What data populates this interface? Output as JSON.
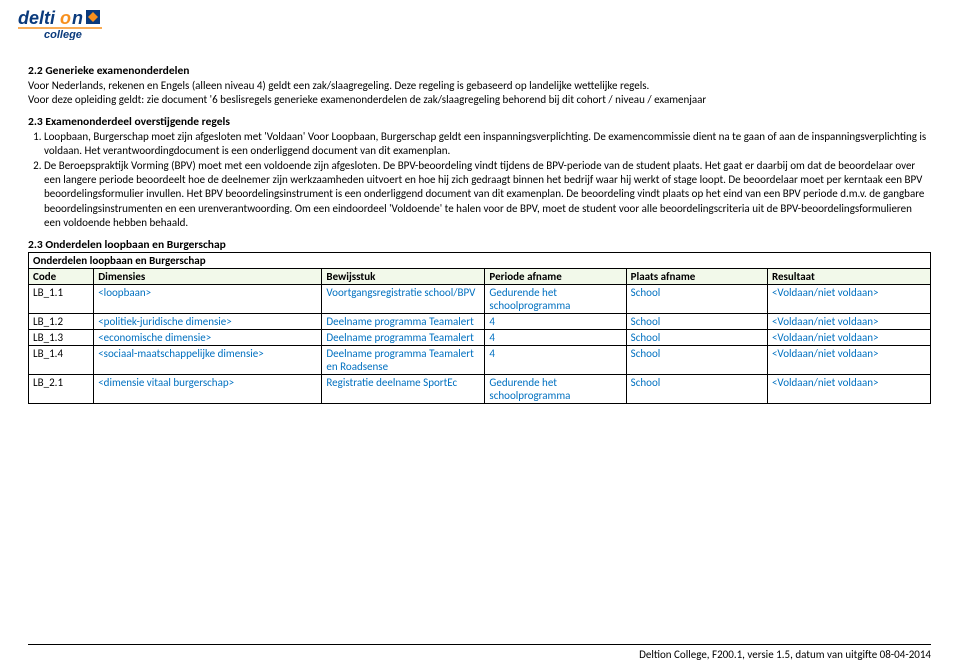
{
  "logo": {
    "text_top": "delti",
    "text_bottom": "college",
    "accent": "#f7901e",
    "blue": "#0a3a7c",
    "square_blue": "#0a3a7c",
    "square_orange": "#f7901e"
  },
  "sec22": {
    "heading": "2.2 Generieke examenonderdelen",
    "p1": "Voor Nederlands, rekenen en Engels (alleen niveau 4) geldt een zak/slaagregeling. Deze regeling is gebaseerd op landelijke wettelijke regels.",
    "p2": "Voor deze opleiding geldt: zie document '6 beslisregels generieke examenonderdelen de zak/slaagregeling behorend bij dit cohort / niveau / examenjaar"
  },
  "sec23a": {
    "heading": "2.3 Examenonderdeel overstijgende regels",
    "li1": "Loopbaan, Burgerschap moet zijn afgesloten met 'Voldaan'  Voor Loopbaan, Burgerschap geldt een inspanningsverplichting. De examencommissie dient na te gaan of aan de inspanningsverplichting is voldaan. Het verantwoordingdocument is een onderliggend document van dit examenplan.",
    "li2": "De Beroepspraktijk Vorming (BPV) moet met een voldoende zijn afgesloten. De BPV-beoordeling vindt tijdens de BPV-periode van de student plaats. Het gaat er daarbij om dat de beoordelaar over een langere periode beoordeelt hoe de deelnemer zijn werkzaamheden uitvoert en hoe hij zich gedraagt binnen het bedrijf waar hij werkt of stage loopt. De beoordelaar moet per kerntaak een BPV beoordelingsformulier invullen. Het BPV beoordelingsinstrument is een onderliggend document van dit examenplan. De beoordeling vindt plaats op het eind van een BPV periode d.m.v. de gangbare beoordelingsinstrumenten en een urenverantwoording. Om een eindoordeel 'Voldoende' te halen voor de BPV, moet de student voor alle beoordelingscriteria uit de BPV-beoordelingsformulieren een voldoende hebben behaald."
  },
  "sec23b": {
    "heading": "2.3 Onderdelen loopbaan en Burgerschap",
    "merged": "Onderdelen loopbaan en Burgerschap",
    "cols": [
      "Code",
      "Dimensies",
      "Bewijsstuk",
      "Periode afname",
      "Plaats afname",
      "Resultaat"
    ],
    "rows": [
      {
        "code": "LB_1.1",
        "dim": "<loopbaan>",
        "bew": "Voortgangsregistratie school/BPV",
        "per": "Gedurende het schoolprogramma",
        "pla": "School",
        "res": "<Voldaan/niet voldaan>"
      },
      {
        "code": "LB_1.2",
        "dim": "<politiek-juridische dimensie>",
        "bew": "Deelname programma Teamalert",
        "per": "4",
        "pla": "School",
        "res": "<Voldaan/niet voldaan>"
      },
      {
        "code": "LB_1.3",
        "dim": "<economische dimensie>",
        "bew": "Deelname programma Teamalert",
        "per": "4",
        "pla": "School",
        "res": "<Voldaan/niet voldaan>"
      },
      {
        "code": "LB_1.4",
        "dim": "<sociaal-maatschappelijke dimensie>",
        "bew": "Deelname programma Teamalert en Roadsense",
        "per": "4",
        "pla": "School",
        "res": "<Voldaan/niet voldaan>"
      },
      {
        "code": "LB_2.1",
        "dim": "<dimensie vitaal burgerschap>",
        "bew": "Registratie deelname SportEc",
        "per": "Gedurende het schoolprogramma",
        "pla": "School",
        "res": "<Voldaan/niet voldaan>"
      }
    ]
  },
  "footer": "Deltion College, F200.1, versie 1.5, datum van uitgifte 08-04-2014"
}
